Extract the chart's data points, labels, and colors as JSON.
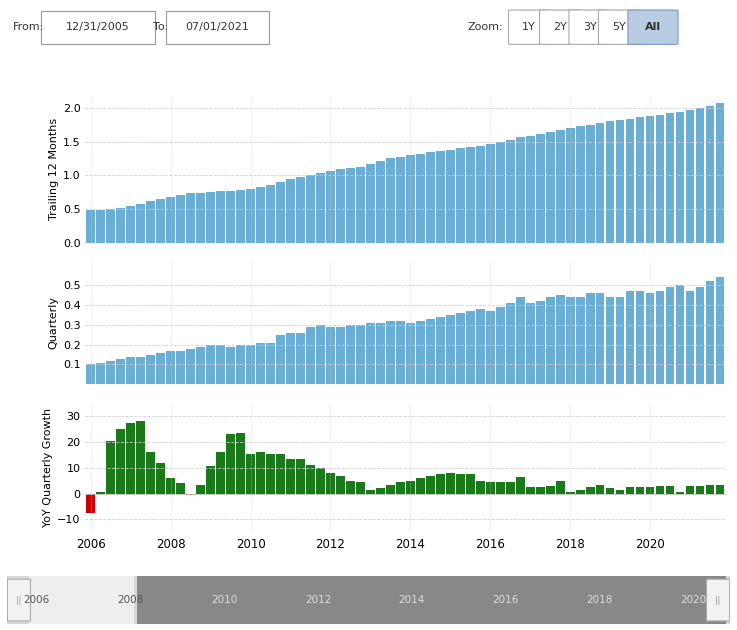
{
  "trailing_12m": [
    0.49,
    0.49,
    0.5,
    0.52,
    0.55,
    0.58,
    0.61,
    0.64,
    0.67,
    0.7,
    0.73,
    0.73,
    0.75,
    0.76,
    0.77,
    0.78,
    0.8,
    0.83,
    0.86,
    0.9,
    0.94,
    0.97,
    1.0,
    1.04,
    1.07,
    1.09,
    1.11,
    1.13,
    1.17,
    1.21,
    1.25,
    1.27,
    1.3,
    1.32,
    1.34,
    1.36,
    1.38,
    1.4,
    1.42,
    1.44,
    1.46,
    1.49,
    1.53,
    1.57,
    1.59,
    1.62,
    1.65,
    1.67,
    1.7,
    1.73,
    1.75,
    1.77,
    1.8,
    1.82,
    1.84,
    1.86,
    1.88,
    1.9,
    1.92,
    1.94,
    1.97,
    2.0,
    2.03,
    2.07
  ],
  "quarterly": [
    0.1,
    0.11,
    0.12,
    0.13,
    0.14,
    0.14,
    0.15,
    0.16,
    0.17,
    0.17,
    0.18,
    0.19,
    0.2,
    0.2,
    0.19,
    0.2,
    0.2,
    0.21,
    0.21,
    0.25,
    0.26,
    0.26,
    0.29,
    0.3,
    0.29,
    0.29,
    0.3,
    0.3,
    0.31,
    0.31,
    0.32,
    0.32,
    0.31,
    0.32,
    0.33,
    0.34,
    0.35,
    0.36,
    0.37,
    0.38,
    0.37,
    0.39,
    0.41,
    0.44,
    0.41,
    0.42,
    0.44,
    0.45,
    0.44,
    0.44,
    0.46,
    0.46,
    0.44,
    0.44,
    0.47,
    0.47,
    0.46,
    0.47,
    0.49,
    0.5,
    0.47,
    0.49,
    0.52,
    0.54
  ],
  "yoy_growth": [
    -7.5,
    0.5,
    20.5,
    25.0,
    27.5,
    28.0,
    16.0,
    12.0,
    6.0,
    4.0,
    -0.5,
    3.5,
    10.5,
    16.0,
    23.0,
    23.5,
    15.5,
    16.0,
    15.5,
    15.5,
    13.5,
    13.5,
    11.0,
    10.0,
    8.0,
    7.0,
    5.0,
    4.5,
    1.5,
    2.0,
    3.5,
    4.5,
    5.0,
    6.0,
    7.0,
    7.5,
    8.0,
    7.5,
    7.5,
    5.0,
    4.5,
    4.5,
    4.5,
    6.5,
    2.5,
    2.5,
    3.0,
    5.0,
    0.5,
    1.5,
    2.5,
    3.5,
    2.0,
    1.5,
    2.5,
    2.5,
    2.5,
    3.0,
    3.0,
    0.5,
    3.0,
    3.0,
    3.5,
    3.5
  ],
  "n_bars": 64,
  "bar_color_blue": "#6aaed6",
  "bar_color_green": "#1a7a1a",
  "bar_color_red": "#cc0000",
  "grid_color": "#cccccc",
  "label_t12": "Trailing 12 Months",
  "label_q": "Quarterly",
  "label_yoy": "YoY Quarterly Growth",
  "t12_ylim": [
    0,
    2.2
  ],
  "q_ylim": [
    0.0,
    0.62
  ],
  "yoy_ylim": [
    -15,
    35
  ],
  "t12_yticks": [
    0.0,
    0.5,
    1.0,
    1.5,
    2.0
  ],
  "q_yticks": [
    0.1,
    0.2,
    0.3,
    0.4,
    0.5
  ],
  "yoy_yticks": [
    -10,
    0,
    10,
    20,
    30
  ],
  "year_ticks": [
    0,
    8,
    16,
    24,
    32,
    40,
    48,
    56
  ],
  "year_labels": [
    "2006",
    "2008",
    "2010",
    "2012",
    "2014",
    "2016",
    "2018",
    "2020"
  ],
  "scrollbar_labels": [
    "2006",
    "2008",
    "2010",
    "2012",
    "2014",
    "2016",
    "2018",
    "2020"
  ]
}
